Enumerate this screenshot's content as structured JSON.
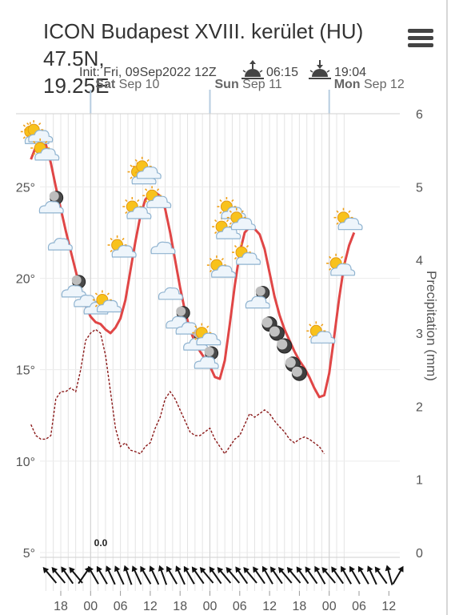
{
  "header": {
    "title_line1": "ICON Budapest XVIII. kerület (HU) 47.5N,",
    "title_line2": "19.25E",
    "init_label": "Init: Fri, 09Sep2022 12Z",
    "sunrise": "06:15",
    "sunset": "19:04",
    "menu_icon": "hamburger-menu-icon"
  },
  "colors": {
    "temperature": "#e04646",
    "precipitation": "#8b1a1a",
    "grid": "#d6d6d6",
    "axis_text": "#555555"
  },
  "chart_data": {
    "type": "line",
    "days": [
      {
        "dow": "Sat",
        "date": "Sep 10"
      },
      {
        "dow": "Sun",
        "date": "Sep 11"
      },
      {
        "dow": "Mon",
        "date": "Sep 12"
      }
    ],
    "x_tick_labels": [
      "18",
      "00",
      "06",
      "12",
      "18",
      "00",
      "06",
      "12",
      "18",
      "00",
      "06",
      "12"
    ],
    "x_hours_first": 12,
    "x_hours_last": 73,
    "ylim_left": [
      5,
      29
    ],
    "left_ticks": [
      5,
      10,
      15,
      20,
      25
    ],
    "left_tick_labels": [
      "5°",
      "10°",
      "15°",
      "20°",
      "25°"
    ],
    "ylim_right": [
      0,
      6
    ],
    "right_ticks": [
      0,
      1,
      2,
      3,
      4,
      5,
      6
    ],
    "right_tick_labels": [
      "0",
      "1",
      "2",
      "3",
      "4",
      "5",
      "6"
    ],
    "ylabel_right": "Precipitation (mm)",
    "annotation": "0.0",
    "series": [
      {
        "key": "temperature",
        "style": "solid",
        "points": [
          [
            12,
            26.5
          ],
          [
            13,
            27.2
          ],
          [
            14,
            27.6
          ],
          [
            15,
            27.3
          ],
          [
            16,
            26.3
          ],
          [
            17,
            25.0
          ],
          [
            18,
            23.8
          ],
          [
            19,
            22.6
          ],
          [
            20,
            21.5
          ],
          [
            21,
            20.4
          ],
          [
            22,
            19.3
          ],
          [
            23,
            18.5
          ],
          [
            24,
            17.9
          ],
          [
            25,
            17.6
          ],
          [
            26,
            17.5
          ],
          [
            27,
            17.2
          ],
          [
            28,
            17.0
          ],
          [
            29,
            17.3
          ],
          [
            30,
            17.8
          ],
          [
            31,
            18.8
          ],
          [
            32,
            20.4
          ],
          [
            33,
            22.0
          ],
          [
            34,
            23.4
          ],
          [
            35,
            24.3
          ],
          [
            36,
            24.6
          ],
          [
            37,
            24.7
          ],
          [
            38,
            24.5
          ],
          [
            39,
            23.8
          ],
          [
            40,
            22.5
          ],
          [
            41,
            21.0
          ],
          [
            42,
            19.5
          ],
          [
            43,
            18.2
          ],
          [
            44,
            17.2
          ],
          [
            45,
            16.5
          ],
          [
            46,
            16.0
          ],
          [
            47,
            15.6
          ],
          [
            48,
            15.2
          ],
          [
            49,
            14.6
          ],
          [
            50,
            14.5
          ],
          [
            51,
            15.5
          ],
          [
            52,
            17.5
          ],
          [
            53,
            19.6
          ],
          [
            54,
            21.4
          ],
          [
            55,
            22.5
          ],
          [
            56,
            22.8
          ],
          [
            57,
            22.7
          ],
          [
            58,
            22.4
          ],
          [
            59,
            21.6
          ],
          [
            60,
            20.3
          ],
          [
            61,
            19.0
          ],
          [
            62,
            18.0
          ],
          [
            63,
            17.2
          ],
          [
            64,
            16.6
          ],
          [
            65,
            16.0
          ],
          [
            66,
            15.5
          ],
          [
            67,
            15.1
          ],
          [
            68,
            14.6
          ],
          [
            69,
            14.0
          ],
          [
            70,
            13.5
          ],
          [
            71,
            13.6
          ],
          [
            72,
            14.8
          ],
          [
            73,
            16.8
          ],
          [
            74,
            18.9
          ],
          [
            75,
            20.7
          ],
          [
            76,
            21.8
          ],
          [
            77,
            22.5
          ]
        ]
      },
      {
        "key": "precipitation",
        "style": "dashed",
        "points": [
          [
            12,
            1.75
          ],
          [
            13,
            1.6
          ],
          [
            14,
            1.55
          ],
          [
            15,
            1.55
          ],
          [
            16,
            1.6
          ],
          [
            17,
            2.1
          ],
          [
            18,
            2.2
          ],
          [
            19,
            2.2
          ],
          [
            20,
            2.25
          ],
          [
            21,
            2.2
          ],
          [
            22,
            2.5
          ],
          [
            23,
            2.9
          ],
          [
            24,
            3.0
          ],
          [
            25,
            3.05
          ],
          [
            26,
            3.0
          ],
          [
            27,
            2.7
          ],
          [
            28,
            2.2
          ],
          [
            29,
            1.7
          ],
          [
            30,
            1.45
          ],
          [
            31,
            1.5
          ],
          [
            32,
            1.4
          ],
          [
            33,
            1.38
          ],
          [
            34,
            1.35
          ],
          [
            35,
            1.45
          ],
          [
            36,
            1.5
          ],
          [
            37,
            1.7
          ],
          [
            38,
            1.85
          ],
          [
            39,
            2.1
          ],
          [
            40,
            2.2
          ],
          [
            41,
            2.1
          ],
          [
            42,
            1.95
          ],
          [
            43,
            1.8
          ],
          [
            44,
            1.65
          ],
          [
            45,
            1.6
          ],
          [
            46,
            1.6
          ],
          [
            47,
            1.65
          ],
          [
            48,
            1.7
          ],
          [
            49,
            1.55
          ],
          [
            50,
            1.45
          ],
          [
            51,
            1.35
          ],
          [
            52,
            1.45
          ],
          [
            53,
            1.55
          ],
          [
            54,
            1.6
          ],
          [
            55,
            1.75
          ],
          [
            56,
            1.9
          ],
          [
            57,
            1.85
          ],
          [
            58,
            1.9
          ],
          [
            59,
            1.95
          ],
          [
            60,
            1.9
          ],
          [
            61,
            1.8
          ],
          [
            62,
            1.72
          ],
          [
            63,
            1.65
          ],
          [
            64,
            1.55
          ],
          [
            65,
            1.5
          ],
          [
            66,
            1.55
          ],
          [
            67,
            1.58
          ],
          [
            68,
            1.55
          ],
          [
            69,
            1.5
          ],
          [
            70,
            1.45
          ],
          [
            71,
            1.35
          ]
        ]
      }
    ],
    "weather_icons": [
      {
        "hour": 12.5,
        "temp": 27.8,
        "type": "partly-sunny"
      },
      {
        "hour": 13.2,
        "temp": 27.9,
        "type": "partly-sunny"
      },
      {
        "hour": 14.5,
        "temp": 26.9,
        "type": "partly-sunny"
      },
      {
        "hour": 16.5,
        "temp": 24.1,
        "type": "night-cloud"
      },
      {
        "hour": 17.8,
        "temp": 21.9,
        "type": "cloud"
      },
      {
        "hour": 21,
        "temp": 19.5,
        "type": "night-cloud"
      },
      {
        "hour": 23,
        "temp": 18.8,
        "type": "cloud"
      },
      {
        "hour": 25,
        "temp": 18.4,
        "type": "cloud"
      },
      {
        "hour": 27,
        "temp": 18.6,
        "type": "partly-sunny"
      },
      {
        "hour": 30,
        "temp": 21.6,
        "type": "partly-sunny"
      },
      {
        "hour": 33,
        "temp": 23.7,
        "type": "partly-sunny"
      },
      {
        "hour": 34,
        "temp": 25.6,
        "type": "partly-sunny"
      },
      {
        "hour": 35,
        "temp": 25.9,
        "type": "partly-sunny"
      },
      {
        "hour": 37,
        "temp": 24.3,
        "type": "partly-sunny"
      },
      {
        "hour": 38.5,
        "temp": 21.7,
        "type": "cloud"
      },
      {
        "hour": 40,
        "temp": 19.2,
        "type": "cloud"
      },
      {
        "hour": 42,
        "temp": 17.8,
        "type": "night-cloud"
      },
      {
        "hour": 43.5,
        "temp": 17.3,
        "type": "cloud"
      },
      {
        "hour": 45.5,
        "temp": 16.6,
        "type": "night-cloud"
      },
      {
        "hour": 47,
        "temp": 16.8,
        "type": "partly-sunny"
      },
      {
        "hour": 47.7,
        "temp": 15.6,
        "type": "night-cloud"
      },
      {
        "hour": 50,
        "temp": 20.5,
        "type": "partly-sunny"
      },
      {
        "hour": 51,
        "temp": 22.6,
        "type": "partly-sunny"
      },
      {
        "hour": 52,
        "temp": 23.7,
        "type": "partly-sunny"
      },
      {
        "hour": 54,
        "temp": 23.1,
        "type": "partly-sunny"
      },
      {
        "hour": 55,
        "temp": 21.2,
        "type": "partly-sunny"
      },
      {
        "hour": 58,
        "temp": 18.9,
        "type": "night-cloud"
      },
      {
        "hour": 60,
        "temp": 17.5,
        "type": "moon"
      },
      {
        "hour": 61.5,
        "temp": 17.0,
        "type": "moon"
      },
      {
        "hour": 63,
        "temp": 16.3,
        "type": "moon"
      },
      {
        "hour": 64.7,
        "temp": 15.3,
        "type": "moon"
      },
      {
        "hour": 66,
        "temp": 14.8,
        "type": "moon"
      },
      {
        "hour": 70,
        "temp": 16.9,
        "type": "partly-sunny"
      },
      {
        "hour": 74,
        "temp": 20.6,
        "type": "partly-sunny"
      },
      {
        "hour": 75.5,
        "temp": 23.1,
        "type": "partly-sunny"
      }
    ],
    "wind_directions_deg": [
      320,
      320,
      325,
      320,
      35,
      330,
      330,
      335,
      335,
      340,
      335,
      330,
      335,
      340,
      330,
      335,
      330,
      325,
      320,
      325,
      320,
      320,
      325,
      320,
      325,
      330,
      325,
      320,
      320,
      325,
      325,
      330,
      320,
      325,
      330,
      330,
      330,
      335,
      325,
      345,
      30
    ]
  }
}
